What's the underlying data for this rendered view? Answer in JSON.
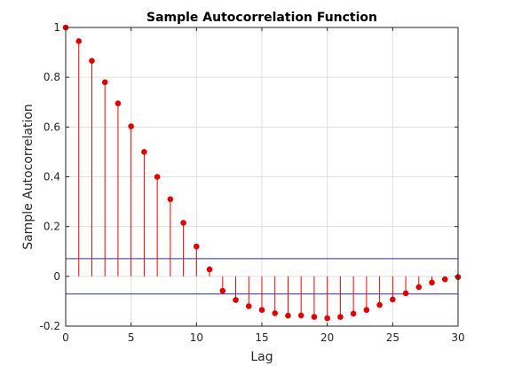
{
  "chart_data": {
    "type": "stem",
    "title": "Sample Autocorrelation Function",
    "xlabel": "Lag",
    "ylabel": "Sample Autocorrelation",
    "xlim": [
      0,
      30
    ],
    "ylim": [
      -0.2,
      1
    ],
    "xticks": [
      "0",
      "5",
      "10",
      "15",
      "20",
      "25",
      "30"
    ],
    "yticks": [
      "-0.2",
      "0",
      "0.2",
      "0.4",
      "0.6",
      "0.8",
      "1"
    ],
    "grid": true,
    "x": [
      0,
      1,
      2,
      3,
      4,
      5,
      6,
      7,
      8,
      9,
      10,
      11,
      12,
      13,
      14,
      15,
      16,
      17,
      18,
      19,
      20,
      21,
      22,
      23,
      24,
      25,
      26,
      27,
      28,
      29,
      30
    ],
    "values": [
      1.0,
      0.945,
      0.866,
      0.78,
      0.695,
      0.603,
      0.5,
      0.4,
      0.31,
      0.215,
      0.12,
      0.028,
      -0.058,
      -0.095,
      -0.12,
      -0.135,
      -0.148,
      -0.158,
      -0.157,
      -0.163,
      -0.168,
      -0.163,
      -0.15,
      -0.135,
      -0.115,
      -0.093,
      -0.068,
      -0.043,
      -0.025,
      -0.012,
      -0.003
    ],
    "confidence_bounds": [
      0.071,
      -0.071
    ],
    "colors": {
      "stem": "#ff0000",
      "marker": "#e00000",
      "bounds": "#2a2ac0"
    }
  }
}
